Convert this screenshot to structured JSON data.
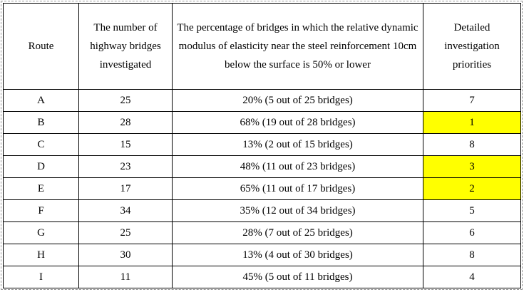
{
  "table": {
    "headers": [
      "Route",
      "The number of highway bridges investigated",
      "The percentage of bridges in which the relative dynamic modulus of elasticity near the steel reinforcement 10cm below the surface is 50% or lower",
      "Detailed investigation priorities"
    ],
    "rows": [
      {
        "route": "A",
        "count": "25",
        "percentage": "20%  (5 out of 25 bridges)",
        "priority": "7",
        "highlighted": false
      },
      {
        "route": "B",
        "count": "28",
        "percentage": "68% (19 out of 28 bridges)",
        "priority": "1",
        "highlighted": true
      },
      {
        "route": "C",
        "count": "15",
        "percentage": "13% (2 out of 15 bridges)",
        "priority": "8",
        "highlighted": false
      },
      {
        "route": "D",
        "count": "23",
        "percentage": "48% (11 out of 23 bridges)",
        "priority": "3",
        "highlighted": true
      },
      {
        "route": "E",
        "count": "17",
        "percentage": "65% (11 out of 17 bridges)",
        "priority": "2",
        "highlighted": true
      },
      {
        "route": "F",
        "count": "34",
        "percentage": "35% (12 out of 34 bridges)",
        "priority": "5",
        "highlighted": false
      },
      {
        "route": "G",
        "count": "25",
        "percentage": "28% (7 out of 25 bridges)",
        "priority": "6",
        "highlighted": false
      },
      {
        "route": "H",
        "count": "30",
        "percentage": "13% (4 out of 30 bridges)",
        "priority": "8",
        "highlighted": false
      },
      {
        "route": "I",
        "count": "11",
        "percentage": "45% (5 out of 11 bridges)",
        "priority": "4",
        "highlighted": false
      }
    ]
  },
  "colors": {
    "highlight": "#ffff00",
    "border": "#000000",
    "frame": "#9a9a9a"
  }
}
